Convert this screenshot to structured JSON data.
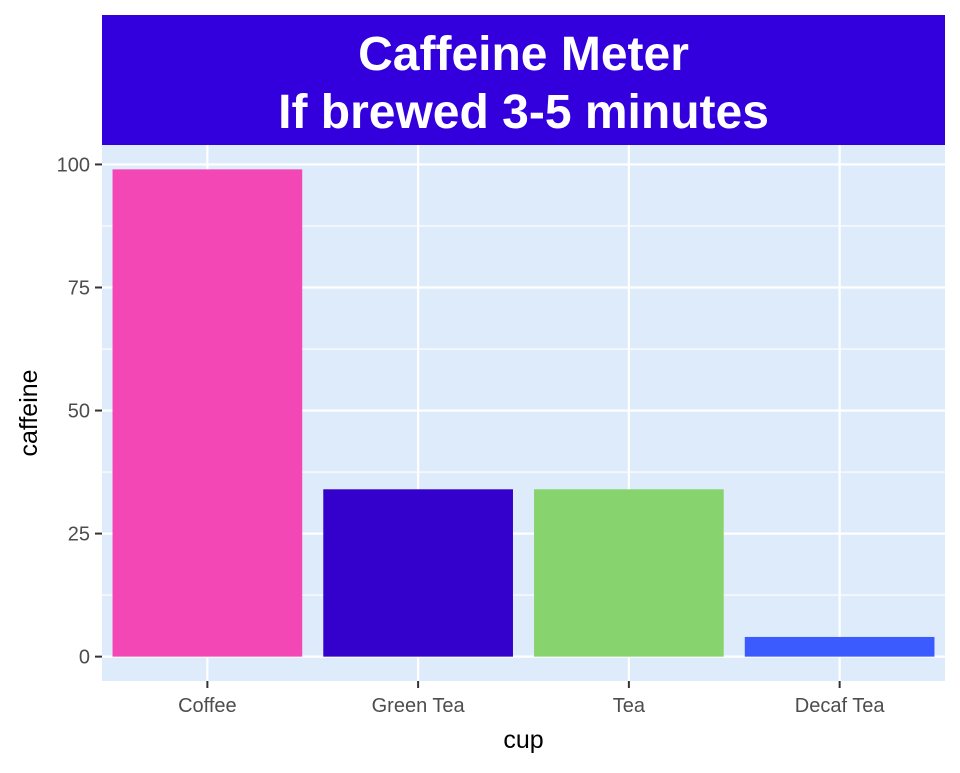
{
  "chart_data": {
    "type": "bar",
    "title": "Caffeine Meter",
    "subtitle": "If brewed 3-5 minutes",
    "xlabel": "cup",
    "ylabel": "caffeine",
    "categories": [
      "Coffee",
      "Green Tea",
      "Tea",
      "Decaf Tea"
    ],
    "values": [
      99,
      34,
      34,
      4
    ],
    "bar_colors": [
      "#F447B6",
      "#3300CC",
      "#87D36E",
      "#3B5BFF"
    ],
    "y_ticks": [
      0,
      25,
      50,
      75,
      100
    ],
    "y_tick_labels": [
      "0",
      "25",
      "50",
      "75",
      "100"
    ],
    "ylim": [
      -4.95,
      103.95
    ],
    "grid": true,
    "legend": "none",
    "colors": {
      "panel_background": "#DDEBFB",
      "grid_major": "#FFFFFF",
      "title_background": "#3300DD",
      "title_text": "#FFFFFF",
      "tick_text": "#4D4D4D",
      "axis_title_text": "#000000"
    }
  }
}
